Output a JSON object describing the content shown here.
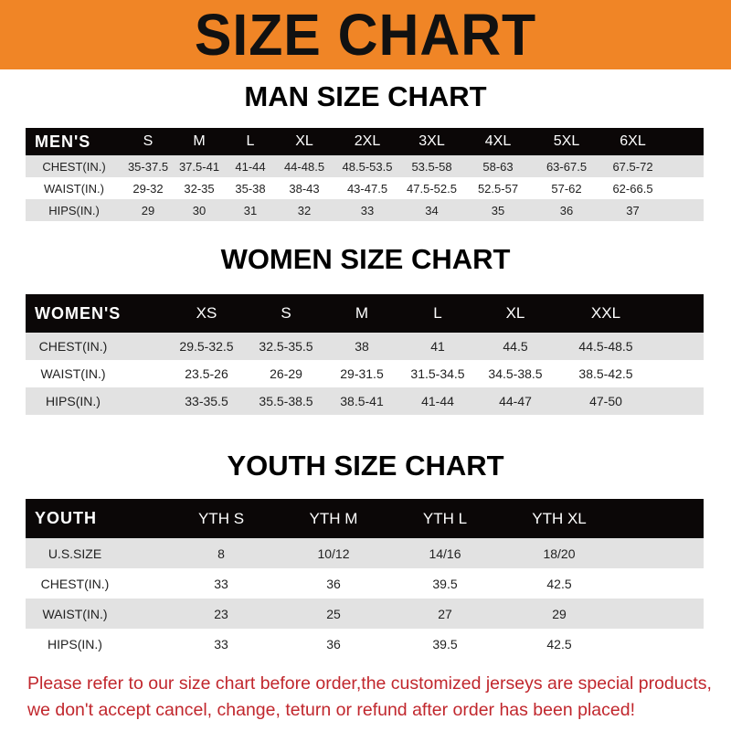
{
  "title": "SIZE CHART",
  "colors": {
    "banner": "#f08526",
    "header_row": "#0b0707",
    "stripe": "#e2e2e2",
    "notice": "#c1272d"
  },
  "men": {
    "title": "MAN SIZE CHART",
    "headers": [
      "MEN'S",
      "S",
      "M",
      "L",
      "XL",
      "2XL",
      "3XL",
      "4XL",
      "5XL",
      "6XL"
    ],
    "rows": [
      [
        "CHEST(IN.)",
        "35-37.5",
        "37.5-41",
        "41-44",
        "44-48.5",
        "48.5-53.5",
        "53.5-58",
        "58-63",
        "63-67.5",
        "67.5-72"
      ],
      [
        "WAIST(IN.)",
        "29-32",
        "32-35",
        "35-38",
        "38-43",
        "43-47.5",
        "47.5-52.5",
        "52.5-57",
        "57-62",
        "62-66.5"
      ],
      [
        "HIPS(IN.)",
        "29",
        "30",
        "31",
        "32",
        "33",
        "34",
        "35",
        "36",
        "37"
      ]
    ]
  },
  "women": {
    "title": "WOMEN SIZE CHART",
    "headers": [
      "WOMEN'S",
      "XS",
      "S",
      "M",
      "L",
      "XL",
      "XXL"
    ],
    "rows": [
      [
        "CHEST(IN.)",
        "29.5-32.5",
        "32.5-35.5",
        "38",
        "41",
        "44.5",
        "44.5-48.5"
      ],
      [
        "WAIST(IN.)",
        "23.5-26",
        "26-29",
        "29-31.5",
        "31.5-34.5",
        "34.5-38.5",
        "38.5-42.5"
      ],
      [
        "HIPS(IN.)",
        "33-35.5",
        "35.5-38.5",
        "38.5-41",
        "41-44",
        "44-47",
        "47-50"
      ]
    ]
  },
  "youth": {
    "title": "YOUTH SIZE CHART",
    "headers": [
      "YOUTH",
      "YTH S",
      "YTH M",
      "YTH L",
      "YTH XL"
    ],
    "rows": [
      [
        "U.S.SIZE",
        "8",
        "10/12",
        "14/16",
        "18/20"
      ],
      [
        "CHEST(IN.)",
        "33",
        "36",
        "39.5",
        "42.5"
      ],
      [
        "WAIST(IN.)",
        "23",
        "25",
        "27",
        "29"
      ],
      [
        "HIPS(IN.)",
        "33",
        "36",
        "39.5",
        "42.5"
      ]
    ]
  },
  "notice": {
    "line1": "Please refer to our size chart before order,the customized jerseys are special products,",
    "line2": "we don't accept cancel, change, teturn or refund after order has been placed!"
  }
}
